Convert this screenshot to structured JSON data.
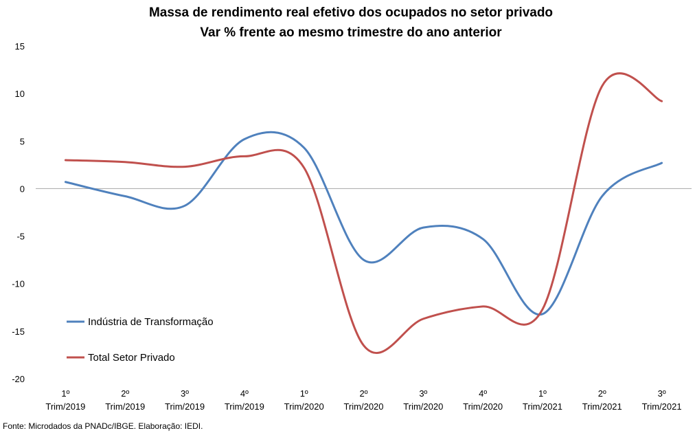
{
  "chart_data": {
    "type": "line",
    "title": "Massa de rendimento real efetivo dos ocupados no setor privado",
    "subtitle": "Var % frente ao mesmo trimestre do ano anterior",
    "categories": [
      [
        "1º",
        "Trim/2019"
      ],
      [
        "2º",
        "Trim/2019"
      ],
      [
        "3º",
        "Trim/2019"
      ],
      [
        "4º",
        "Trim/2019"
      ],
      [
        "1º",
        "Trim/2020"
      ],
      [
        "2º",
        "Trim/2020"
      ],
      [
        "3º",
        "Trim/2020"
      ],
      [
        "4º",
        "Trim/2020"
      ],
      [
        "1º",
        "Trim/2021"
      ],
      [
        "2º",
        "Trim/2021"
      ],
      [
        "3º",
        "Trim/2021"
      ]
    ],
    "series": [
      {
        "name": "Indústria de Transformação",
        "color": "#4F81BD",
        "values": [
          0.7,
          -0.8,
          -1.8,
          5.2,
          4.3,
          -7.5,
          -4.1,
          -5.3,
          -13.2,
          -0.8,
          2.7
        ]
      },
      {
        "name": "Total Setor Privado",
        "color": "#C0504D",
        "values": [
          3.0,
          2.8,
          2.3,
          3.4,
          2.2,
          -16.5,
          -13.7,
          -12.4,
          -12.7,
          10.8,
          9.2
        ]
      }
    ],
    "ylim": [
      -20,
      15
    ],
    "yticks": [
      15,
      10,
      5,
      0,
      -5,
      -10,
      -15,
      -20
    ],
    "xlabel": "",
    "ylabel": "",
    "grid": false,
    "zero_line": true,
    "legend_position": "bottom-left",
    "source": "Fonte: Microdados da PNADc/IBGE. Elaboração: IEDI."
  }
}
